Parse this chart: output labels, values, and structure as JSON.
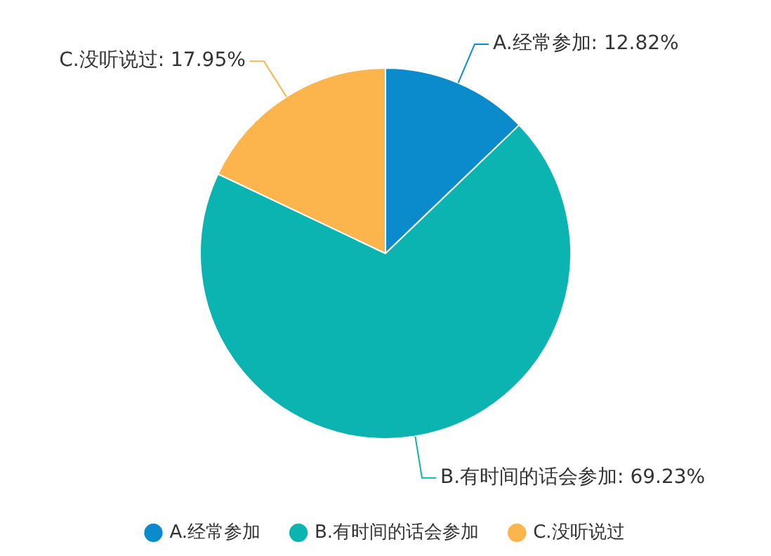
{
  "chart_data": {
    "type": "pie",
    "categories": [
      "A.经常参加",
      "B.有时间的话会参加",
      "C.没听说过"
    ],
    "values": [
      12.82,
      69.23,
      17.95
    ],
    "value_labels": [
      ": 12.82%",
      ": 69.23%",
      ": 17.95%"
    ],
    "colors": [
      "#0b8bcc",
      "#0bb4b0",
      "#fbb54c"
    ],
    "legend": "bottom"
  }
}
